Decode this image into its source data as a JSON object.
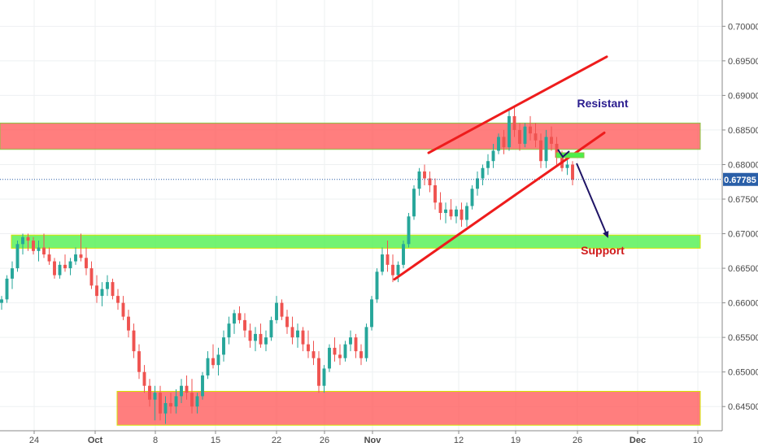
{
  "chart_data": {
    "type": "candlestick",
    "y_axis": {
      "position": "right",
      "range": [
        0.6415,
        0.7038
      ],
      "ticks": [
        "0.70000",
        "0.69500",
        "0.69000",
        "0.68500",
        "0.68000",
        "0.67500",
        "0.67000",
        "0.66500",
        "0.66000",
        "0.65500",
        "0.65000",
        "0.64500"
      ]
    },
    "x_axis": {
      "ticks": [
        "24",
        "Oct",
        "8",
        "15",
        "22",
        "26",
        "Nov",
        "12",
        "19",
        "26",
        "Dec",
        "10"
      ],
      "bold_ticks": [
        "Oct",
        "Nov",
        "Dec"
      ]
    },
    "current_price": {
      "label": "0.67785",
      "value": 0.67785
    },
    "zones": [
      {
        "name": "resistance-zone",
        "type": "resistance",
        "price_range": [
          0.6822,
          0.686
        ],
        "color": "#ff5a5a",
        "border": "#8ac540"
      },
      {
        "name": "support-zone",
        "type": "support",
        "price_range": [
          0.6679,
          0.6698
        ],
        "color": "#4cef4c",
        "border": "#d4e600"
      },
      {
        "name": "lower-zone",
        "type": "resistance",
        "price_range": [
          0.6423,
          0.6472
        ],
        "color": "#ff5a5a",
        "border": "#d4e600"
      }
    ],
    "annotations": [
      {
        "name": "resistant-label",
        "text": "Resistant",
        "color": "#2b1d8f"
      },
      {
        "name": "support-label",
        "text": "Support",
        "color": "#d01b1b"
      }
    ],
    "trendlines": [
      {
        "name": "channel-upper-line",
        "from": [
          0.6817,
          0.6817
        ],
        "to": [
          0.6956,
          0.6956
        ],
        "color": "#ee1c1c"
      },
      {
        "name": "channel-lower-line",
        "from": [
          0.6634,
          0.6634
        ],
        "to": [
          0.6846,
          0.6846
        ],
        "color": "#ee1c1c"
      }
    ],
    "colors": {
      "up": "#26a69a",
      "down": "#ef5350",
      "arrow": "#1f1466",
      "grid": "#eef0f2",
      "price_tag": "#2a5fa8"
    },
    "candles": [
      [
        0.66,
        0.661,
        0.659,
        0.6605
      ],
      [
        0.6605,
        0.664,
        0.66,
        0.6635
      ],
      [
        0.6635,
        0.666,
        0.662,
        0.665
      ],
      [
        0.665,
        0.669,
        0.6645,
        0.6685
      ],
      [
        0.6685,
        0.67,
        0.667,
        0.6695
      ],
      [
        0.6695,
        0.67,
        0.6675,
        0.669
      ],
      [
        0.669,
        0.6695,
        0.667,
        0.6675
      ],
      [
        0.6675,
        0.669,
        0.666,
        0.668
      ],
      [
        0.668,
        0.67,
        0.6665,
        0.667
      ],
      [
        0.667,
        0.668,
        0.6655,
        0.666
      ],
      [
        0.666,
        0.6665,
        0.6635,
        0.664
      ],
      [
        0.664,
        0.666,
        0.6635,
        0.6655
      ],
      [
        0.6655,
        0.667,
        0.6645,
        0.665
      ],
      [
        0.665,
        0.6665,
        0.664,
        0.666
      ],
      [
        0.666,
        0.668,
        0.6655,
        0.667
      ],
      [
        0.667,
        0.67,
        0.666,
        0.6665
      ],
      [
        0.6665,
        0.668,
        0.664,
        0.665
      ],
      [
        0.665,
        0.666,
        0.662,
        0.6625
      ],
      [
        0.6625,
        0.664,
        0.66,
        0.661
      ],
      [
        0.661,
        0.663,
        0.6595,
        0.662
      ],
      [
        0.662,
        0.664,
        0.661,
        0.663
      ],
      [
        0.663,
        0.6635,
        0.6605,
        0.661
      ],
      [
        0.661,
        0.662,
        0.659,
        0.66
      ],
      [
        0.66,
        0.661,
        0.6575,
        0.658
      ],
      [
        0.658,
        0.659,
        0.655,
        0.656
      ],
      [
        0.656,
        0.657,
        0.652,
        0.653
      ],
      [
        0.653,
        0.654,
        0.649,
        0.65
      ],
      [
        0.65,
        0.651,
        0.647,
        0.648
      ],
      [
        0.648,
        0.649,
        0.645,
        0.646
      ],
      [
        0.646,
        0.648,
        0.643,
        0.647
      ],
      [
        0.647,
        0.648,
        0.643,
        0.644
      ],
      [
        0.644,
        0.6465,
        0.6425,
        0.6455
      ],
      [
        0.6455,
        0.647,
        0.644,
        0.645
      ],
      [
        0.645,
        0.6475,
        0.644,
        0.6465
      ],
      [
        0.6465,
        0.649,
        0.6455,
        0.648
      ],
      [
        0.648,
        0.6495,
        0.646,
        0.647
      ],
      [
        0.647,
        0.649,
        0.644,
        0.645
      ],
      [
        0.645,
        0.647,
        0.644,
        0.6465
      ],
      [
        0.6465,
        0.65,
        0.646,
        0.6495
      ],
      [
        0.6495,
        0.653,
        0.649,
        0.652
      ],
      [
        0.652,
        0.654,
        0.6505,
        0.651
      ],
      [
        0.651,
        0.6535,
        0.6495,
        0.6525
      ],
      [
        0.6525,
        0.656,
        0.6515,
        0.655
      ],
      [
        0.655,
        0.658,
        0.654,
        0.657
      ],
      [
        0.657,
        0.659,
        0.6555,
        0.6585
      ],
      [
        0.6585,
        0.6595,
        0.657,
        0.6575
      ],
      [
        0.6575,
        0.6585,
        0.655,
        0.656
      ],
      [
        0.656,
        0.657,
        0.6535,
        0.6545
      ],
      [
        0.6545,
        0.6565,
        0.653,
        0.6555
      ],
      [
        0.6555,
        0.657,
        0.6535,
        0.654
      ],
      [
        0.654,
        0.656,
        0.653,
        0.655
      ],
      [
        0.655,
        0.658,
        0.6545,
        0.6575
      ],
      [
        0.6575,
        0.661,
        0.657,
        0.66
      ],
      [
        0.66,
        0.6605,
        0.6575,
        0.658
      ],
      [
        0.658,
        0.659,
        0.6555,
        0.6565
      ],
      [
        0.6565,
        0.658,
        0.654,
        0.655
      ],
      [
        0.655,
        0.657,
        0.6535,
        0.656
      ],
      [
        0.656,
        0.6565,
        0.653,
        0.654
      ],
      [
        0.654,
        0.656,
        0.652,
        0.653
      ],
      [
        0.653,
        0.6545,
        0.651,
        0.652
      ],
      [
        0.652,
        0.653,
        0.647,
        0.648
      ],
      [
        0.648,
        0.651,
        0.647,
        0.6505
      ],
      [
        0.6505,
        0.654,
        0.65,
        0.6535
      ],
      [
        0.6535,
        0.655,
        0.6515,
        0.6525
      ],
      [
        0.6525,
        0.654,
        0.651,
        0.652
      ],
      [
        0.652,
        0.6545,
        0.6515,
        0.654
      ],
      [
        0.654,
        0.656,
        0.653,
        0.655
      ],
      [
        0.655,
        0.6555,
        0.652,
        0.653
      ],
      [
        0.653,
        0.654,
        0.651,
        0.652
      ],
      [
        0.652,
        0.657,
        0.6515,
        0.6565
      ],
      [
        0.6565,
        0.661,
        0.656,
        0.6605
      ],
      [
        0.6605,
        0.665,
        0.66,
        0.6645
      ],
      [
        0.6645,
        0.668,
        0.664,
        0.667
      ],
      [
        0.667,
        0.669,
        0.6645,
        0.6655
      ],
      [
        0.6655,
        0.667,
        0.663,
        0.664
      ],
      [
        0.664,
        0.666,
        0.663,
        0.6655
      ],
      [
        0.6655,
        0.669,
        0.665,
        0.6685
      ],
      [
        0.6685,
        0.673,
        0.668,
        0.6725
      ],
      [
        0.6725,
        0.677,
        0.672,
        0.6765
      ],
      [
        0.6765,
        0.6795,
        0.6755,
        0.679
      ],
      [
        0.679,
        0.68,
        0.677,
        0.678
      ],
      [
        0.678,
        0.679,
        0.676,
        0.677
      ],
      [
        0.677,
        0.678,
        0.6735,
        0.6745
      ],
      [
        0.6745,
        0.676,
        0.672,
        0.673
      ],
      [
        0.673,
        0.6745,
        0.6715,
        0.6735
      ],
      [
        0.6735,
        0.675,
        0.672,
        0.6725
      ],
      [
        0.6725,
        0.674,
        0.6715,
        0.6735
      ],
      [
        0.6735,
        0.6745,
        0.671,
        0.672
      ],
      [
        0.672,
        0.6745,
        0.671,
        0.674
      ],
      [
        0.674,
        0.677,
        0.6735,
        0.6765
      ],
      [
        0.6765,
        0.679,
        0.6755,
        0.678
      ],
      [
        0.678,
        0.68,
        0.677,
        0.6795
      ],
      [
        0.6795,
        0.6815,
        0.6785,
        0.6805
      ],
      [
        0.6805,
        0.683,
        0.6795,
        0.682
      ],
      [
        0.682,
        0.6845,
        0.6815,
        0.684
      ],
      [
        0.684,
        0.685,
        0.6815,
        0.6825
      ],
      [
        0.6825,
        0.688,
        0.682,
        0.687
      ],
      [
        0.687,
        0.6885,
        0.684,
        0.685
      ],
      [
        0.685,
        0.686,
        0.682,
        0.683
      ],
      [
        0.683,
        0.686,
        0.6825,
        0.6855
      ],
      [
        0.6855,
        0.687,
        0.6835,
        0.6845
      ],
      [
        0.6845,
        0.686,
        0.6825,
        0.6835
      ],
      [
        0.6835,
        0.6845,
        0.6795,
        0.6805
      ],
      [
        0.6805,
        0.685,
        0.6795,
        0.684
      ],
      [
        0.684,
        0.6855,
        0.682,
        0.683
      ],
      [
        0.683,
        0.684,
        0.68,
        0.681
      ],
      [
        0.681,
        0.682,
        0.679,
        0.6795
      ],
      [
        0.6795,
        0.6815,
        0.6785,
        0.68
      ],
      [
        0.68,
        0.6805,
        0.677,
        0.6778
      ]
    ]
  }
}
